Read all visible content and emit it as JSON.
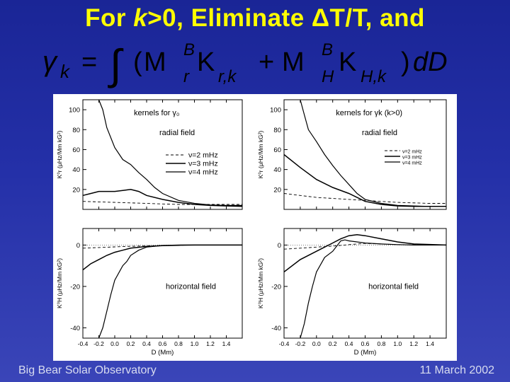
{
  "slide": {
    "title_prefix": "For ",
    "title_k": "k",
    "title_suffix": ">0, Eliminate ΔT/T, and",
    "footer_left": "Big Bear Solar Observatory",
    "footer_right": "11 March  2002"
  },
  "formula": {
    "lhs_symbol": "γ",
    "lhs_subscript": "k",
    "equals": "=",
    "integral": "∫",
    "open_paren": "(",
    "term1_M": "M",
    "term1_M_super": "B",
    "term1_M_sub": "r",
    "term1_K": "K",
    "term1_K_sub": "r,k",
    "plus": "+",
    "term2_M": "M",
    "term2_M_super": "B",
    "term2_M_sub": "H",
    "term2_K": "K",
    "term2_K_sub": "H,k",
    "close_paren": ")",
    "differential": "dD"
  },
  "chart_data": [
    {
      "type": "line",
      "panel": "top-left",
      "annotations": [
        "kernels for γ₀",
        "radial field"
      ],
      "ylabel": "K⁰r (μHz/Mm kG²)",
      "xlim": [
        -0.4,
        1.6
      ],
      "ylim": [
        0,
        110
      ],
      "yticks": [
        20,
        40,
        60,
        80,
        100
      ],
      "legend": [
        "ν=2 mHz",
        "ν=3 mHz",
        "ν=4 mHz"
      ],
      "series": [
        {
          "name": "ν=2 mHz",
          "dash": "dashed",
          "x": [
            -0.4,
            -0.2,
            0.0,
            0.2,
            0.4,
            0.6,
            0.8,
            1.0,
            1.4,
            1.6
          ],
          "y": [
            8,
            7.5,
            7,
            6.5,
            6,
            5.5,
            5,
            5,
            5,
            5
          ]
        },
        {
          "name": "ν=3 mHz",
          "dash": "solid",
          "x": [
            -0.4,
            -0.3,
            -0.2,
            -0.1,
            0.0,
            0.1,
            0.2,
            0.3,
            0.4,
            0.6,
            0.8,
            1.0,
            1.2,
            1.4,
            1.6
          ],
          "y": [
            14,
            16,
            18,
            18,
            18,
            19,
            20,
            18,
            14,
            10,
            7,
            5,
            4,
            3.5,
            3
          ]
        },
        {
          "name": "ν=4 mHz",
          "dash": "solid",
          "x": [
            -0.2,
            -0.15,
            -0.1,
            0.0,
            0.1,
            0.2,
            0.3,
            0.4,
            0.5,
            0.6,
            0.8,
            1.0,
            1.2,
            1.4,
            1.6
          ],
          "y": [
            110,
            100,
            82,
            62,
            50,
            45,
            37,
            30,
            22,
            16,
            9,
            6,
            4.5,
            4,
            4
          ]
        }
      ]
    },
    {
      "type": "line",
      "panel": "top-right",
      "annotations": [
        "kernels for γk (k>0)",
        "radial field"
      ],
      "ylabel": "K⁰r (μHz/Mm kG²)",
      "xlim": [
        -0.4,
        1.6
      ],
      "ylim": [
        0,
        110
      ],
      "yticks": [
        20,
        40,
        60,
        80,
        100
      ],
      "legend": [
        "ν=2 mHz",
        "ν=3 mHz",
        "ν=4 mHz"
      ],
      "series": [
        {
          "name": "ν=2 mHz",
          "dash": "dashed",
          "x": [
            -0.4,
            -0.2,
            0.0,
            0.2,
            0.4,
            0.6,
            0.8,
            1.0,
            1.4,
            1.6
          ],
          "y": [
            16,
            14,
            12,
            11,
            10,
            9,
            8,
            7,
            6,
            6
          ]
        },
        {
          "name": "ν=3 mHz",
          "dash": "solid",
          "x": [
            -0.4,
            -0.2,
            0.0,
            0.2,
            0.4,
            0.5,
            0.6,
            0.8,
            1.0,
            1.2,
            1.4,
            1.6
          ],
          "y": [
            55,
            42,
            30,
            22,
            16,
            12,
            8,
            5,
            3.5,
            3,
            3,
            3
          ]
        },
        {
          "name": "ν=4 mHz",
          "dash": "solid",
          "x": [
            -0.2,
            -0.15,
            -0.1,
            0.0,
            0.1,
            0.2,
            0.3,
            0.4,
            0.5,
            0.6,
            0.8,
            1.0,
            1.4,
            1.6
          ],
          "y": [
            110,
            95,
            80,
            68,
            55,
            44,
            34,
            25,
            16,
            10,
            6,
            4,
            3,
            3
          ]
        }
      ]
    },
    {
      "type": "line",
      "panel": "bottom-left",
      "annotations": [
        "horizontal field"
      ],
      "xlabel": "D (Mm)",
      "ylabel": "K⁰H (μHz/Mm kG²)",
      "xlim": [
        -0.4,
        1.6
      ],
      "ylim": [
        -45,
        8
      ],
      "yticks": [
        -40,
        -20,
        0
      ],
      "xticks": [
        -0.4,
        -0.2,
        0.0,
        0.2,
        0.4,
        0.6,
        0.8,
        1.0,
        1.2,
        1.4
      ],
      "series": [
        {
          "name": "ν=2 mHz",
          "dash": "dashed",
          "x": [
            -0.4,
            -0.2,
            0.0,
            0.2,
            0.4,
            0.6,
            0.8,
            1.0,
            1.6
          ],
          "y": [
            -1.5,
            -1.2,
            -0.9,
            -0.6,
            -0.4,
            -0.2,
            -0.1,
            0,
            0
          ]
        },
        {
          "name": "ν=3 mHz",
          "dash": "solid",
          "x": [
            -0.4,
            -0.3,
            -0.2,
            -0.1,
            0.0,
            0.1,
            0.2,
            0.4,
            0.6,
            0.8,
            1.0,
            1.6
          ],
          "y": [
            -12,
            -9,
            -7,
            -5,
            -3.5,
            -2.5,
            -1.5,
            -0.7,
            -0.3,
            -0.1,
            0,
            0
          ]
        },
        {
          "name": "ν=4 mHz",
          "dash": "solid",
          "x": [
            -0.2,
            -0.15,
            -0.1,
            -0.05,
            0.0,
            0.1,
            0.15,
            0.2,
            0.3,
            0.4,
            0.6,
            0.8,
            1.0,
            1.6
          ],
          "y": [
            -46,
            -40,
            -32,
            -24,
            -17,
            -10,
            -8,
            -5,
            -2.5,
            -1,
            -0.2,
            0,
            0,
            0
          ]
        }
      ]
    },
    {
      "type": "line",
      "panel": "bottom-right",
      "annotations": [
        "horizontal field"
      ],
      "xlabel": "D (Mm)",
      "ylabel": "K⁰H (μHz/Mm kG²)",
      "xlim": [
        -0.4,
        1.6
      ],
      "ylim": [
        -45,
        8
      ],
      "yticks": [
        -40,
        -20,
        0
      ],
      "xticks": [
        -0.4,
        -0.2,
        0.0,
        0.2,
        0.4,
        0.6,
        0.8,
        1.0,
        1.2,
        1.4
      ],
      "series": [
        {
          "name": "ν=2 mHz",
          "dash": "dashed",
          "x": [
            -0.4,
            -0.2,
            0.0,
            0.2,
            0.4,
            0.6,
            0.8,
            1.0,
            1.6
          ],
          "y": [
            -2,
            -1.5,
            -1,
            -0.5,
            0.2,
            0.8,
            0.5,
            0.2,
            0
          ]
        },
        {
          "name": "ν=3 mHz",
          "dash": "solid",
          "x": [
            -0.4,
            -0.2,
            0.0,
            0.1,
            0.2,
            0.3,
            0.4,
            0.5,
            0.6,
            0.8,
            1.0,
            1.2,
            1.6
          ],
          "y": [
            -13,
            -7,
            -3,
            -1,
            1,
            3,
            4.5,
            5,
            4.5,
            3,
            1.5,
            0.5,
            0
          ]
        },
        {
          "name": "ν=4 mHz",
          "dash": "solid",
          "x": [
            -0.2,
            -0.15,
            -0.1,
            -0.05,
            0.0,
            0.1,
            0.2,
            0.3,
            0.35,
            0.4,
            0.6,
            0.8,
            1.0,
            1.2,
            1.6
          ],
          "y": [
            -46,
            -38,
            -28,
            -20,
            -13,
            -6,
            -3,
            2,
            2.5,
            2,
            1,
            0.5,
            0.2,
            0,
            0
          ]
        }
      ]
    }
  ]
}
